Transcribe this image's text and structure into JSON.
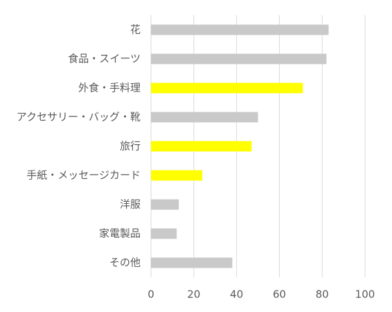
{
  "chart_data": {
    "type": "barh",
    "categories": [
      "花",
      "食品・スイーツ",
      "外食・手料理",
      "アクセサリー・バッグ・靴",
      "旅行",
      "手紙・メッセージカード",
      "洋服",
      "家電製品",
      "その他"
    ],
    "values": [
      83,
      82,
      71,
      50,
      47,
      24,
      13,
      12,
      38
    ],
    "colors": [
      "#c9c9c9",
      "#c9c9c9",
      "#ffff00",
      "#c9c9c9",
      "#ffff00",
      "#ffff00",
      "#c9c9c9",
      "#c9c9c9",
      "#c9c9c9"
    ],
    "xlim": [
      0,
      100
    ],
    "xticks": [
      0,
      20,
      40,
      60,
      80,
      100
    ],
    "grid": true
  }
}
